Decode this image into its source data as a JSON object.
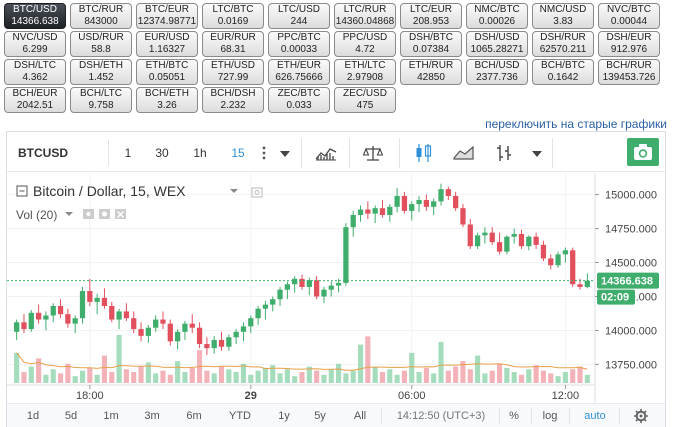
{
  "pairs": [
    {
      "name": "BTC/USD",
      "price": "14366.638",
      "active": true
    },
    {
      "name": "BTC/RUR",
      "price": "843000"
    },
    {
      "name": "BTC/EUR",
      "price": "12374.98771"
    },
    {
      "name": "LTC/BTC",
      "price": "0.0169"
    },
    {
      "name": "LTC/USD",
      "price": "244"
    },
    {
      "name": "LTC/RUR",
      "price": "14360.04868"
    },
    {
      "name": "LTC/EUR",
      "price": "208.953"
    },
    {
      "name": "NMC/BTC",
      "price": "0.00026"
    },
    {
      "name": "NMC/USD",
      "price": "3.83"
    },
    {
      "name": "NVC/BTC",
      "price": "0.00044"
    },
    {
      "name": "NVC/USD",
      "price": "6.299"
    },
    {
      "name": "USD/RUR",
      "price": "58.8"
    },
    {
      "name": "EUR/USD",
      "price": "1.16327"
    },
    {
      "name": "EUR/RUR",
      "price": "68.31"
    },
    {
      "name": "PPC/BTC",
      "price": "0.00033"
    },
    {
      "name": "PPC/USD",
      "price": "4.72"
    },
    {
      "name": "DSH/BTC",
      "price": "0.07384"
    },
    {
      "name": "DSH/USD",
      "price": "1065.28271"
    },
    {
      "name": "DSH/RUR",
      "price": "62570.211"
    },
    {
      "name": "DSH/EUR",
      "price": "912.976"
    },
    {
      "name": "DSH/LTC",
      "price": "4.362"
    },
    {
      "name": "DSH/ETH",
      "price": "1.452"
    },
    {
      "name": "ETH/BTC",
      "price": "0.05051"
    },
    {
      "name": "ETH/USD",
      "price": "727.99"
    },
    {
      "name": "ETH/EUR",
      "price": "626.75666"
    },
    {
      "name": "ETH/LTC",
      "price": "2.97908"
    },
    {
      "name": "ETH/RUR",
      "price": "42850"
    },
    {
      "name": "BCH/USD",
      "price": "2377.736"
    },
    {
      "name": "BCH/BTC",
      "price": "0.1642"
    },
    {
      "name": "BCH/RUR",
      "price": "139453.726"
    },
    {
      "name": "BCH/EUR",
      "price": "2042.51"
    },
    {
      "name": "BCH/LTC",
      "price": "9.758"
    },
    {
      "name": "BCH/ETH",
      "price": "3.26"
    },
    {
      "name": "BCH/DSH",
      "price": "2.232"
    },
    {
      "name": "ZEC/BTC",
      "price": "0.033"
    },
    {
      "name": "ZEC/USD",
      "price": "475"
    }
  ],
  "switch_link": "переключить на старые графики",
  "toolbar": {
    "symbol": "BTCUSD",
    "intervals": [
      "1",
      "30",
      "1h",
      "15"
    ],
    "active_interval": "15"
  },
  "legend": {
    "title": "Bitcoin / Dollar, 15, WEX",
    "volume": "Vol (20)"
  },
  "colors": {
    "up": "#3fae6c",
    "down": "#e2505e",
    "accent": "#2f8fd8",
    "price_line": "#3fae6c"
  },
  "price_axis": {
    "ticks": [
      "15000.000",
      "14750.000",
      "14500.000",
      "14250.000",
      "14000.000",
      "13750.000"
    ],
    "last_price": "14366.638",
    "countdown": "02:09"
  },
  "time_axis": {
    "ticks": [
      "18:00",
      "29",
      "06:00",
      "12:00"
    ]
  },
  "bottombar": {
    "ranges": [
      "1d",
      "5d",
      "1m",
      "3m",
      "6m",
      "YTD",
      "1y",
      "5y",
      "All"
    ],
    "clock": "14:12:50 (UTC+3)",
    "percent": "%",
    "log": "log",
    "auto": "auto"
  },
  "chart_data": {
    "type": "candlestick",
    "ylim": [
      13650,
      15100
    ],
    "candles": [
      [
        13990,
        14080,
        13930,
        14060
      ],
      [
        14060,
        14120,
        13980,
        14010
      ],
      [
        14010,
        14150,
        13990,
        14130
      ],
      [
        14130,
        14190,
        14050,
        14080
      ],
      [
        14080,
        14140,
        14000,
        14110
      ],
      [
        14110,
        14200,
        14060,
        14180
      ],
      [
        14180,
        14230,
        14090,
        14120
      ],
      [
        14120,
        14160,
        14020,
        14050
      ],
      [
        14050,
        14110,
        13980,
        14090
      ],
      [
        14090,
        14320,
        14050,
        14290
      ],
      [
        14290,
        14380,
        14180,
        14210
      ],
      [
        14210,
        14270,
        14120,
        14240
      ],
      [
        14240,
        14310,
        14160,
        14180
      ],
      [
        14180,
        14210,
        14060,
        14080
      ],
      [
        14080,
        14160,
        14010,
        14140
      ],
      [
        14140,
        14200,
        14070,
        14090
      ],
      [
        14090,
        14140,
        13980,
        14010
      ],
      [
        14010,
        14060,
        13920,
        13960
      ],
      [
        13960,
        14040,
        13910,
        14020
      ],
      [
        14020,
        14110,
        13990,
        14080
      ],
      [
        14080,
        14140,
        14010,
        14050
      ],
      [
        14050,
        14080,
        13890,
        13920
      ],
      [
        13920,
        14010,
        13860,
        13990
      ],
      [
        13990,
        14070,
        13930,
        14050
      ],
      [
        14050,
        14120,
        13980,
        14020
      ],
      [
        14020,
        14060,
        13870,
        13900
      ],
      [
        13900,
        13950,
        13820,
        13870
      ],
      [
        13870,
        13960,
        13830,
        13930
      ],
      [
        13930,
        13990,
        13850,
        13880
      ],
      [
        13880,
        13970,
        13850,
        13950
      ],
      [
        13950,
        14010,
        13900,
        13990
      ],
      [
        13990,
        14060,
        13920,
        14030
      ],
      [
        14030,
        14110,
        13980,
        14090
      ],
      [
        14090,
        14180,
        14040,
        14160
      ],
      [
        14160,
        14220,
        14080,
        14190
      ],
      [
        14190,
        14250,
        14140,
        14230
      ],
      [
        14230,
        14320,
        14180,
        14300
      ],
      [
        14300,
        14360,
        14230,
        14340
      ],
      [
        14340,
        14400,
        14280,
        14380
      ],
      [
        14380,
        14410,
        14300,
        14320
      ],
      [
        14320,
        14390,
        14260,
        14370
      ],
      [
        14370,
        14400,
        14230,
        14250
      ],
      [
        14250,
        14320,
        14200,
        14300
      ],
      [
        14300,
        14360,
        14250,
        14330
      ],
      [
        14330,
        14380,
        14280,
        14350
      ],
      [
        14350,
        14790,
        14330,
        14760
      ],
      [
        14760,
        14880,
        14690,
        14850
      ],
      [
        14850,
        14920,
        14800,
        14890
      ],
      [
        14890,
        14950,
        14820,
        14860
      ],
      [
        14860,
        14920,
        14790,
        14900
      ],
      [
        14900,
        14960,
        14830,
        14850
      ],
      [
        14850,
        14930,
        14800,
        14910
      ],
      [
        14910,
        15050,
        14870,
        14990
      ],
      [
        14990,
        15020,
        14860,
        14880
      ],
      [
        14880,
        14950,
        14810,
        14930
      ],
      [
        14930,
        14990,
        14870,
        14960
      ],
      [
        14960,
        15000,
        14880,
        14910
      ],
      [
        14910,
        14970,
        14850,
        14950
      ],
      [
        14950,
        15080,
        14920,
        15040
      ],
      [
        15040,
        15060,
        14960,
        14990
      ],
      [
        14990,
        15020,
        14880,
        14900
      ],
      [
        14900,
        14930,
        14760,
        14780
      ],
      [
        14780,
        14820,
        14600,
        14620
      ],
      [
        14620,
        14720,
        14600,
        14700
      ],
      [
        14700,
        14760,
        14640,
        14720
      ],
      [
        14720,
        14760,
        14630,
        14650
      ],
      [
        14650,
        14720,
        14560,
        14580
      ],
      [
        14580,
        14700,
        14560,
        14690
      ],
      [
        14690,
        14750,
        14640,
        14710
      ],
      [
        14710,
        14740,
        14600,
        14620
      ],
      [
        14620,
        14700,
        14590,
        14690
      ],
      [
        14690,
        14720,
        14600,
        14630
      ],
      [
        14630,
        14660,
        14510,
        14530
      ],
      [
        14530,
        14560,
        14450,
        14480
      ],
      [
        14480,
        14580,
        14460,
        14560
      ],
      [
        14560,
        14610,
        14500,
        14590
      ],
      [
        14590,
        14610,
        14320,
        14340
      ],
      [
        14340,
        14380,
        14300,
        14320
      ],
      [
        14320,
        14420,
        14310,
        14366
      ]
    ],
    "volumes": [
      22,
      8,
      12,
      18,
      6,
      10,
      7,
      14,
      5,
      9,
      11,
      6,
      20,
      8,
      35,
      10,
      8,
      12,
      15,
      7,
      9,
      6,
      16,
      8,
      11,
      24,
      9,
      7,
      12,
      10,
      8,
      14,
      6,
      9,
      11,
      13,
      7,
      10,
      5,
      8,
      12,
      9,
      6,
      10,
      14,
      7,
      9,
      28,
      34,
      12,
      8,
      10,
      6,
      9,
      22,
      8,
      11,
      7,
      30,
      9,
      12,
      16,
      10,
      20,
      7,
      9,
      14,
      11,
      8,
      6,
      10,
      13,
      9,
      7,
      5,
      8,
      10,
      12,
      6
    ]
  }
}
